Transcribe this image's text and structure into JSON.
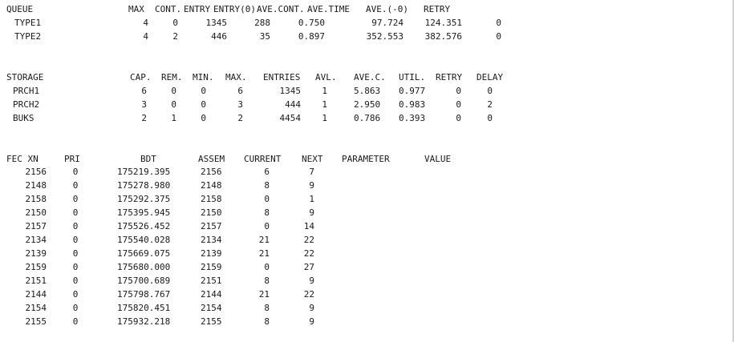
{
  "queue": {
    "headers": [
      "QUEUE",
      "MAX",
      "CONT.",
      "ENTRY",
      "ENTRY(0)",
      "AVE.CONT.",
      "AVE.TIME",
      "AVE.(-0)",
      "RETRY"
    ],
    "rows": [
      [
        "TYPE1",
        "4",
        "0",
        "1345",
        "288",
        "0.750",
        "97.724",
        "124.351",
        "0"
      ],
      [
        "TYPE2",
        "4",
        "2",
        "446",
        "35",
        "0.897",
        "352.553",
        "382.576",
        "0"
      ]
    ]
  },
  "storage": {
    "headers": [
      "STORAGE",
      "CAP.",
      "REM.",
      "MIN.",
      "MAX.",
      "ENTRIES",
      "AVL.",
      "AVE.C.",
      "UTIL.",
      "RETRY",
      "DELAY"
    ],
    "rows": [
      [
        "PRCH1",
        "6",
        "0",
        "0",
        "6",
        "1345",
        "1",
        "5.863",
        "0.977",
        "0",
        "0"
      ],
      [
        "PRCH2",
        "3",
        "0",
        "0",
        "3",
        "444",
        "1",
        "2.950",
        "0.983",
        "0",
        "2"
      ],
      [
        "BUKS",
        "2",
        "1",
        "0",
        "2",
        "4454",
        "1",
        "0.786",
        "0.393",
        "0",
        "0"
      ]
    ]
  },
  "fec": {
    "headers": [
      "FEC XN",
      "PRI",
      "BDT",
      "ASSEM",
      "CURRENT",
      "NEXT",
      "PARAMETER",
      "VALUE"
    ],
    "rows": [
      [
        "2156",
        "0",
        "175219.395",
        "2156",
        "6",
        "7"
      ],
      [
        "2148",
        "0",
        "175278.980",
        "2148",
        "8",
        "9"
      ],
      [
        "2158",
        "0",
        "175292.375",
        "2158",
        "0",
        "1"
      ],
      [
        "2150",
        "0",
        "175395.945",
        "2150",
        "8",
        "9"
      ],
      [
        "2157",
        "0",
        "175526.452",
        "2157",
        "0",
        "14"
      ],
      [
        "2134",
        "0",
        "175540.028",
        "2134",
        "21",
        "22"
      ],
      [
        "2139",
        "0",
        "175669.075",
        "2139",
        "21",
        "22"
      ],
      [
        "2159",
        "0",
        "175680.000",
        "2159",
        "0",
        "27"
      ],
      [
        "2151",
        "0",
        "175700.689",
        "2151",
        "8",
        "9"
      ],
      [
        "2144",
        "0",
        "175798.767",
        "2144",
        "21",
        "22"
      ],
      [
        "2154",
        "0",
        "175820.451",
        "2154",
        "8",
        "9"
      ],
      [
        "2155",
        "0",
        "175932.218",
        "2155",
        "8",
        "9"
      ]
    ]
  }
}
